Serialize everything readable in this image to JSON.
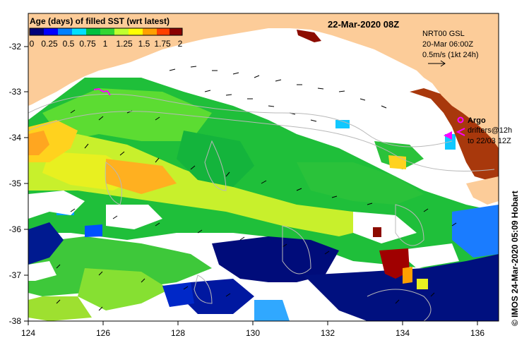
{
  "map": {
    "date_label": "22-Mar-2020 08Z",
    "credit": "© IMOS 24-Mar-2020 05:09 Hobart",
    "x_ticks": [
      "124",
      "126",
      "128",
      "130",
      "132",
      "134",
      "136"
    ],
    "y_ticks": [
      "-32",
      "-33",
      "-34",
      "-35",
      "-36",
      "-37",
      "-38"
    ],
    "lon_range": [
      124,
      136.6
    ],
    "lat_range": [
      -38.1,
      -31.4
    ]
  },
  "colorbar": {
    "title": "Age (days) of filled SST (wrt latest)",
    "ticks": [
      "0",
      "0.25",
      "0.5",
      "0.75",
      "1",
      "1.25",
      "1.5",
      "1.75",
      "2"
    ],
    "range": [
      0,
      2
    ],
    "colors": [
      "#00007a",
      "#0000ff",
      "#0080ff",
      "#00e0ff",
      "#00c040",
      "#33d633",
      "#c0ff30",
      "#ffff00",
      "#ffa000",
      "#ff4000",
      "#8a0000"
    ]
  },
  "info": {
    "product": "NRT00 GSL",
    "time": "20-Mar 06:00Z",
    "scale": "0.5m/s (1kt 24h)"
  },
  "legend": {
    "argo_label": "Argo",
    "drifters_label": "drifters@12h",
    "drifters_range": "to 22/03 12Z"
  },
  "colors": {
    "land": "#fccc99",
    "no_data": "#ffffff",
    "frame": "#000000",
    "argo": "#ff00ff"
  }
}
